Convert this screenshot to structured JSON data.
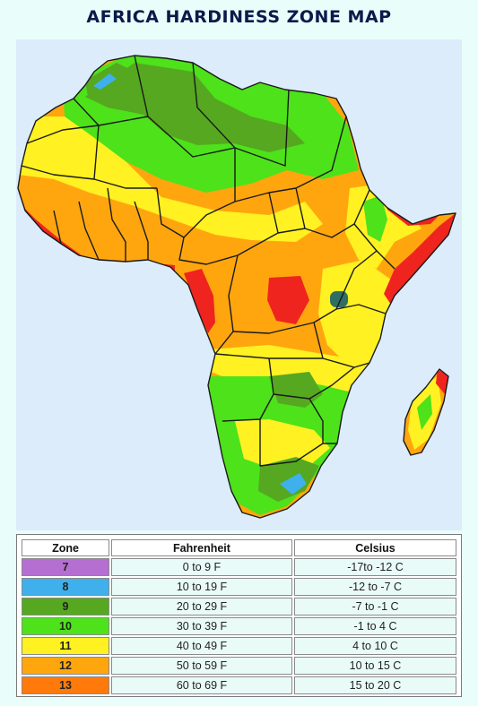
{
  "title": "AFRICA HARDINESS ZONE MAP",
  "colors": {
    "ocean": "#dcecfb",
    "border": "#1a1a1a"
  },
  "legend": {
    "headers": [
      "Zone",
      "Fahrenheit",
      "Celsius"
    ],
    "rows": [
      {
        "zone": "7",
        "fahrenheit": "0 to 9 F",
        "celsius": "-17to -12 C",
        "color": "#b46fd0"
      },
      {
        "zone": "8",
        "fahrenheit": "10 to 19 F",
        "celsius": "-12 to -7 C",
        "color": "#3fb0ec"
      },
      {
        "zone": "9",
        "fahrenheit": "20 to 29 F",
        "celsius": "-7 to -1 C",
        "color": "#55a820"
      },
      {
        "zone": "10",
        "fahrenheit": "30 to 39 F",
        "celsius": "-1 to 4 C",
        "color": "#4de21a"
      },
      {
        "zone": "11",
        "fahrenheit": "40 to 49 F",
        "celsius": "4 to 10 C",
        "color": "#fff122"
      },
      {
        "zone": "12",
        "fahrenheit": "50 to 59 F",
        "celsius": "10 to 15 C",
        "color": "#ffa60f"
      },
      {
        "zone": "13",
        "fahrenheit": "60 to 69 F",
        "celsius": "15 to 20 C",
        "color": "#ff7a0a"
      }
    ]
  },
  "extra_zone_colors": {
    "hottest": "#f0241e",
    "coolest_highland": "#2f6f63"
  }
}
